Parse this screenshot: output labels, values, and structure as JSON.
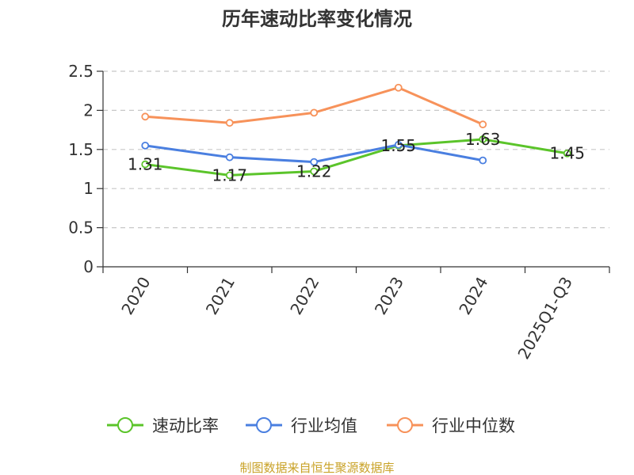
{
  "chart_data": {
    "type": "line",
    "title": "历年速动比率变化情况",
    "categories": [
      "2020",
      "2021",
      "2022",
      "2023",
      "2024",
      "2025Q1-Q3"
    ],
    "ylim": [
      0,
      2.5
    ],
    "yticks": [
      "0",
      "0.5",
      "1",
      "1.5",
      "2",
      "2.5"
    ],
    "grid": true,
    "legend_position": "bottom",
    "series": [
      {
        "name": "速动比率",
        "color": "#5bc42a",
        "values": [
          1.31,
          1.17,
          1.22,
          1.55,
          1.63,
          1.45
        ],
        "labels": [
          "1.31",
          "1.17",
          "1.22",
          "1.55",
          "1.63",
          "1.45"
        ]
      },
      {
        "name": "行业均值",
        "color": "#4a7fe0",
        "values": [
          1.55,
          1.4,
          1.34,
          1.56,
          1.36,
          null
        ]
      },
      {
        "name": "行业中位数",
        "color": "#f7925a",
        "values": [
          1.92,
          1.84,
          1.97,
          2.29,
          1.82,
          null
        ]
      }
    ]
  },
  "source_text": "制图数据来自恒生聚源数据库"
}
